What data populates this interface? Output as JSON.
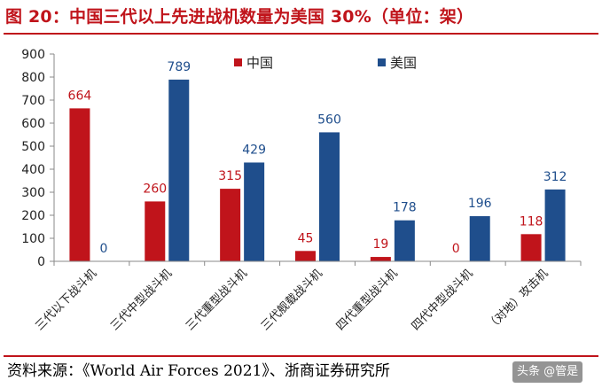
{
  "title": "图 20：中国三代以上先进战机数量为美国 30%（单位：架）",
  "source": "资料来源：《World Air Forces 2021》、浙商证券研究所",
  "watermark": "头条 @管是",
  "colors": {
    "china": "#c0141b",
    "usa": "#1f4e8c",
    "title": "#c0141b"
  },
  "chart_data": {
    "type": "bar",
    "title": "中国三代以上先进战机数量为美国 30%（单位：架）",
    "categories": [
      "三代以下战斗机",
      "三代中型战斗机",
      "三代重型战斗机",
      "三代舰载战斗机",
      "四代重型战斗机",
      "四代中型战斗机",
      "（对地）攻击机"
    ],
    "series": [
      {
        "name": "中国",
        "values": [
          664,
          260,
          315,
          45,
          19,
          0,
          118
        ]
      },
      {
        "name": "美国",
        "values": [
          0,
          789,
          429,
          560,
          178,
          196,
          312
        ]
      }
    ],
    "yticks": [
      0,
      100,
      200,
      300,
      400,
      500,
      600,
      700,
      800,
      900
    ],
    "ylim": [
      0,
      900
    ],
    "xlabel": "",
    "ylabel": "",
    "legend": "top-center",
    "grid": false
  }
}
